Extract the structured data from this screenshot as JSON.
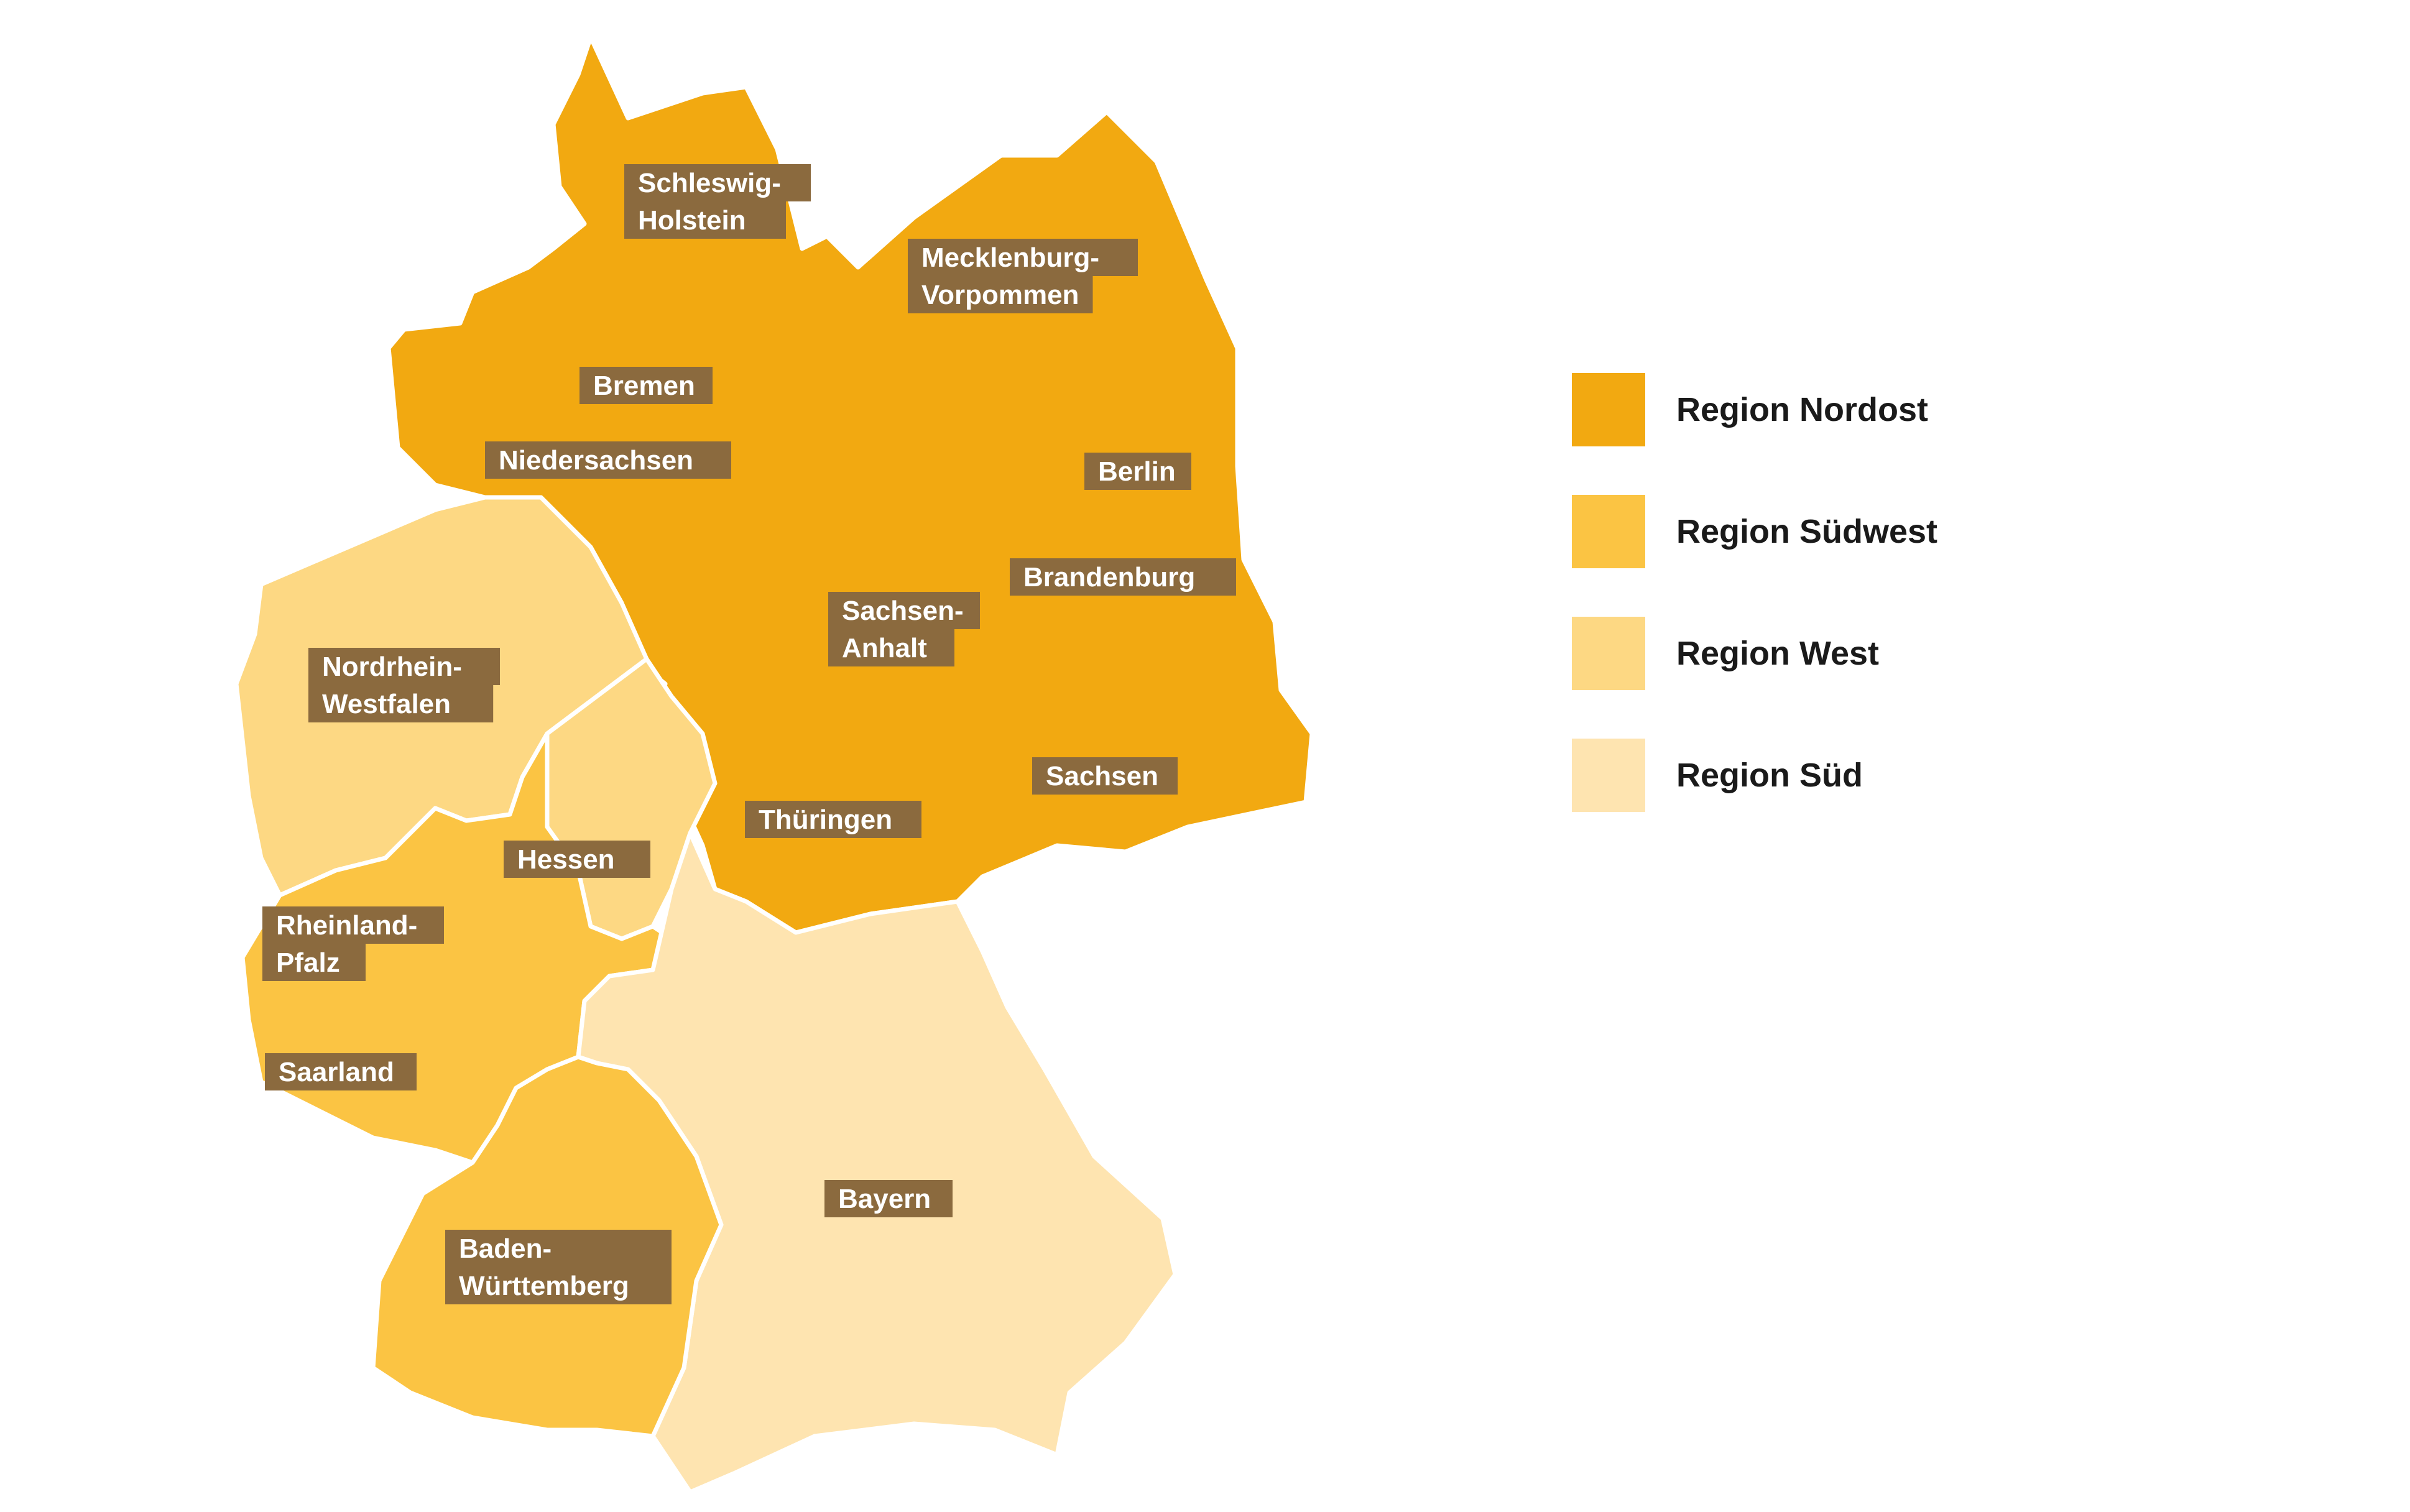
{
  "map": {
    "region_colors": {
      "nordost": "#f2a911",
      "suedwest": "#fbc443",
      "west": "#fdd883",
      "sued": "#fee4b0"
    },
    "states": [
      {
        "id": "schleswig-holstein",
        "lines": [
          "Schleswig-",
          "Holstein"
        ],
        "region": "nordost"
      },
      {
        "id": "mecklenburg-vorpommern",
        "lines": [
          "Mecklenburg-",
          "Vorpommen"
        ],
        "region": "nordost"
      },
      {
        "id": "bremen",
        "lines": [
          "Bremen"
        ],
        "region": "nordost"
      },
      {
        "id": "niedersachsen",
        "lines": [
          "Niedersachsen"
        ],
        "region": "nordost"
      },
      {
        "id": "berlin",
        "lines": [
          "Berlin"
        ],
        "region": "nordost"
      },
      {
        "id": "brandenburg",
        "lines": [
          "Brandenburg"
        ],
        "region": "nordost"
      },
      {
        "id": "sachsen-anhalt",
        "lines": [
          "Sachsen-",
          "Anhalt"
        ],
        "region": "nordost"
      },
      {
        "id": "nordrhein-westfalen",
        "lines": [
          "Nordrhein-",
          "Westfalen"
        ],
        "region": "west"
      },
      {
        "id": "sachsen",
        "lines": [
          "Sachsen"
        ],
        "region": "nordost"
      },
      {
        "id": "thueringen",
        "lines": [
          "Thüringen"
        ],
        "region": "nordost"
      },
      {
        "id": "hessen",
        "lines": [
          "Hessen"
        ],
        "region": "suedwest"
      },
      {
        "id": "rheinland-pfalz",
        "lines": [
          "Rheinland-",
          "Pfalz"
        ],
        "region": "suedwest"
      },
      {
        "id": "saarland",
        "lines": [
          "Saarland"
        ],
        "region": "suedwest"
      },
      {
        "id": "bayern",
        "lines": [
          "Bayern"
        ],
        "region": "sued"
      },
      {
        "id": "baden-wuerttemberg",
        "lines": [
          "Baden-",
          "Württemberg"
        ],
        "region": "suedwest"
      }
    ]
  },
  "legend": {
    "items": [
      {
        "label": "Region Nordost",
        "color": "#f2a911"
      },
      {
        "label": "Region Südwest",
        "color": "#fbc443"
      },
      {
        "label": "Region West",
        "color": "#fdd883"
      },
      {
        "label": "Region Süd",
        "color": "#fee4b0"
      }
    ]
  }
}
